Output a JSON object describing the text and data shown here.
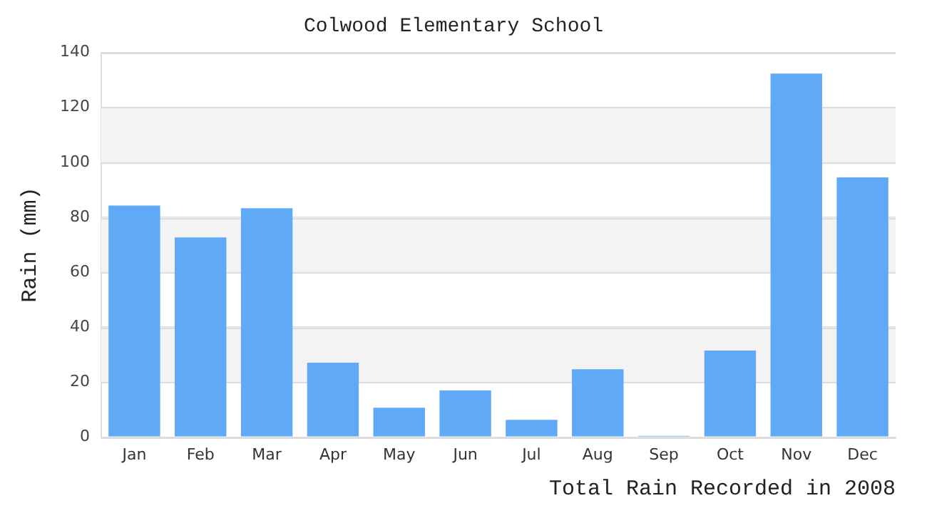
{
  "chart_data": {
    "type": "bar",
    "title": "Colwood Elementary School",
    "xlabel": "Total Rain Recorded in 2008",
    "ylabel": "Rain (mm)",
    "categories": [
      "Jan",
      "Feb",
      "Mar",
      "Apr",
      "May",
      "Jun",
      "Jul",
      "Aug",
      "Sep",
      "Oct",
      "Nov",
      "Dec"
    ],
    "values": [
      84.3,
      72.7,
      83.3,
      27.1,
      10.7,
      17,
      6.3,
      24.7,
      0.5,
      31.5,
      132.3,
      94.5
    ],
    "color": "#60a9f6",
    "ylim": [
      0,
      140
    ],
    "yticks": [
      0,
      20,
      40,
      60,
      80,
      100,
      120,
      140
    ],
    "grid": true,
    "legend": false
  }
}
